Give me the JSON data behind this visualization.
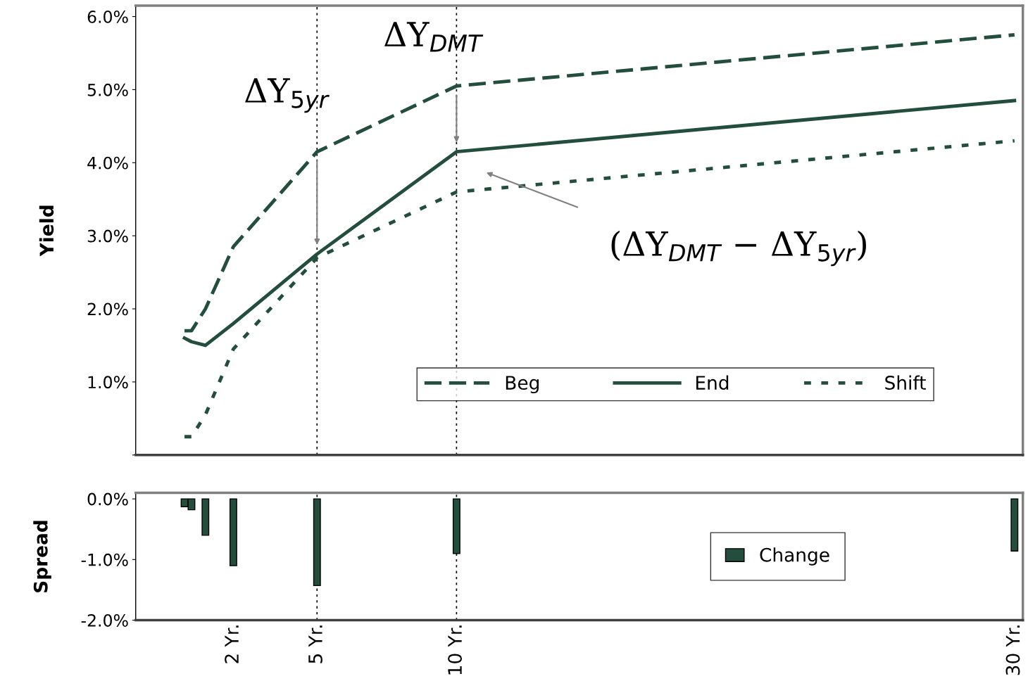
{
  "chart_data": [
    {
      "type": "line",
      "ylabel": "Yield",
      "x": [
        0.25,
        0.5,
        1,
        2,
        5,
        10,
        30
      ],
      "xlim": [
        -1.5,
        30.3
      ],
      "ylim": [
        0,
        6.15
      ],
      "yticks": [
        {
          "value": 0,
          "label": null
        },
        {
          "value": 1,
          "label": "1.0%"
        },
        {
          "value": 2,
          "label": "2.0%"
        },
        {
          "value": 3,
          "label": "3.0%"
        },
        {
          "value": 4,
          "label": "4.0%"
        },
        {
          "value": 5,
          "label": "5.0%"
        },
        {
          "value": 6,
          "label": "6.0%"
        }
      ],
      "series": [
        {
          "name": "Beg",
          "color": "#234d3c",
          "line_style": "dashed",
          "values": [
            1.7,
            1.7,
            2.0,
            2.85,
            4.15,
            5.05,
            5.75
          ]
        },
        {
          "name": "End",
          "color": "#234d3c",
          "line_style": "solid",
          "values": [
            1.6,
            1.55,
            1.5,
            1.8,
            2.75,
            4.15,
            4.85
          ]
        },
        {
          "name": "Shift",
          "color": "#234d3c",
          "line_style": "dotted",
          "values": [
            0.25,
            0.25,
            0.55,
            1.45,
            2.7,
            3.6,
            4.3
          ]
        }
      ],
      "annotations": [
        "ΔY$_{5yr}$",
        "ΔY$_{DMT}$",
        "(ΔY$_{DMT}$ − ΔY$_{5yr}$)"
      ],
      "ref_lines": [
        {
          "axis": "x",
          "value": 5,
          "color": "#000000",
          "line_style": "dotted"
        },
        {
          "axis": "x",
          "value": 10,
          "color": "#000000",
          "line_style": "dotted"
        }
      ],
      "legend": "bottom right",
      "tick_labels": "y",
      "grid": false
    },
    {
      "type": "bar",
      "ylabel": "Spread",
      "x": [
        0.25,
        0.5,
        1,
        2,
        5,
        10,
        30
      ],
      "xlim": [
        -1.5,
        30.3
      ],
      "ylim": [
        -2.0,
        0.1
      ],
      "xticks": [
        {
          "value": 2,
          "label": "2 Yr."
        },
        {
          "value": 5,
          "label": "5 Yr."
        },
        {
          "value": 10,
          "label": "10 Yr."
        },
        {
          "value": 30,
          "label": "30 Yr."
        }
      ],
      "yticks": [
        {
          "value": -2.0,
          "label": "-2.0%"
        },
        {
          "value": -1.0,
          "label": "-1.0%"
        },
        {
          "value": 0,
          "label": "0.0%"
        }
      ],
      "series": [
        {
          "name": "Change",
          "color": "#234d3c",
          "values": [
            -0.13,
            -0.18,
            -0.6,
            -1.1,
            -1.43,
            -0.9,
            -0.86
          ]
        }
      ],
      "ref_lines": [
        {
          "axis": "x",
          "value": 5,
          "color": "#000000",
          "line_style": "dotted"
        },
        {
          "axis": "x",
          "value": 10,
          "color": "#000000",
          "line_style": "dotted"
        }
      ],
      "legend": "right",
      "grid": false
    }
  ]
}
